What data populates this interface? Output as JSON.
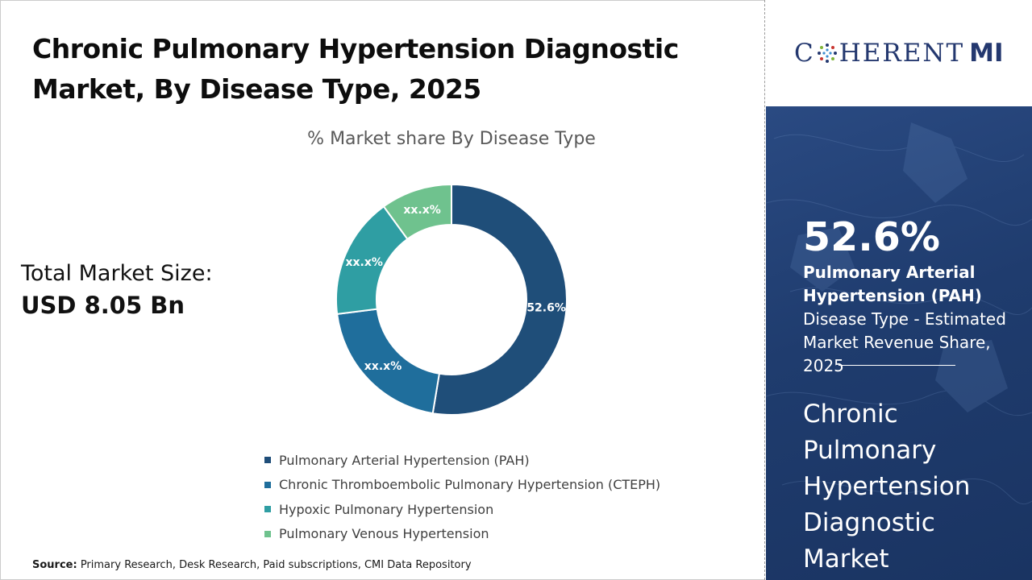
{
  "header": {
    "title_line1": "Chronic Pulmonary Hypertension Diagnostic",
    "title_line2": "Market, By Disease Type, 2025"
  },
  "market": {
    "total_label": "Total Market Size:",
    "total_value": "USD 8.05 Bn"
  },
  "chart_data": {
    "type": "pie",
    "subtitle": "% Market share By Disease Type",
    "donut": true,
    "categories": [
      "Pulmonary Arterial Hypertension (PAH)",
      "Chronic Thromboembolic Pulmonary Hypertension (CTEPH)",
      "Hypoxic Pulmonary Hypertension",
      "Pulmonary Venous Hypertension"
    ],
    "values": [
      52.6,
      20.4,
      17.0,
      10.0
    ],
    "data_labels": [
      "52.6%",
      "xx.x%",
      "xx.x%",
      "xx.x%"
    ],
    "colors": [
      "#1f4e79",
      "#1f6e9c",
      "#2f9ea3",
      "#6fc28e"
    ],
    "legend_position": "bottom"
  },
  "source": {
    "label": "Source:",
    "text": " Primary Research, Desk Research, Paid subscriptions, CMI Data Repository"
  },
  "brand": {
    "logo_prefix": "C",
    "logo_suffix": "HERENT",
    "logo_mi": "MI"
  },
  "highlight": {
    "value": "52.6%",
    "segment": "Pulmonary Arterial Hypertension (PAH)",
    "description": "Disease Type - Estimated Market Revenue Share, 2025",
    "side_title": "Chronic Pulmonary Hypertension Diagnostic Market"
  },
  "colors": {
    "panel_bg": "#1f3c6e",
    "logo": "#24386f"
  }
}
